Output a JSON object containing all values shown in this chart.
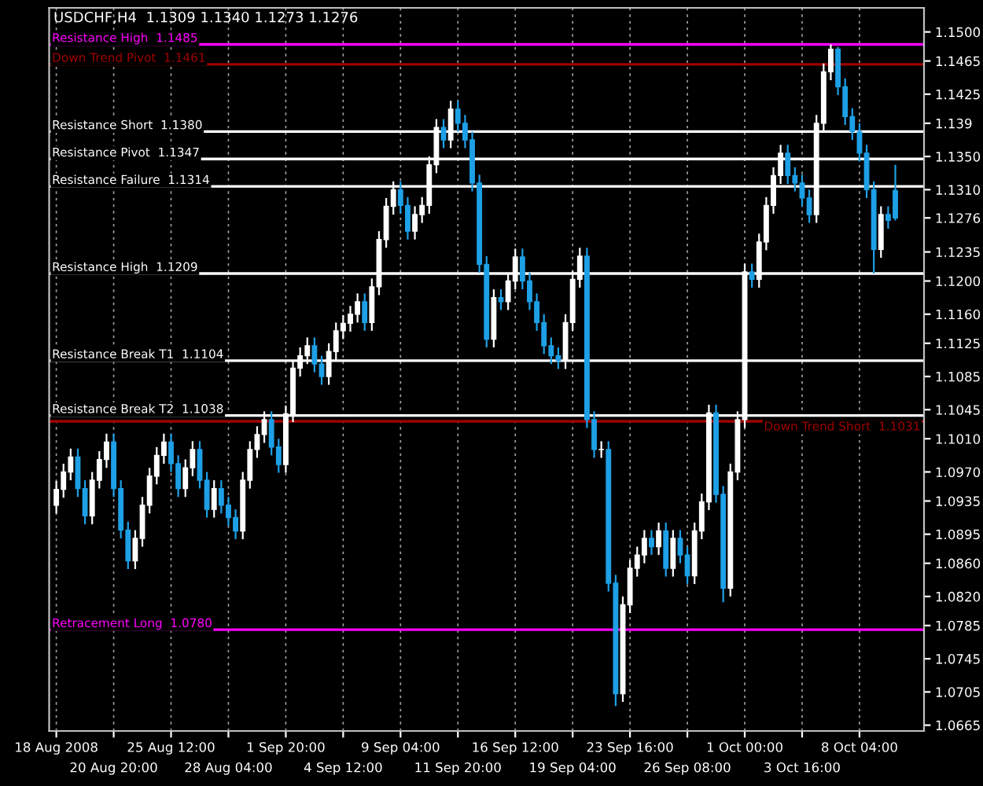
{
  "chart_data": {
    "type": "candlestick",
    "title": "USDCHF,H4  1.1309 1.1340 1.1273 1.1276",
    "categories": [
      "18 Aug 2008",
      null,
      null,
      null,
      null,
      null,
      null,
      null,
      "20 Aug 20:00",
      null,
      null,
      null,
      null,
      null,
      null,
      null,
      "25 Aug 12:00",
      null,
      null,
      null,
      null,
      null,
      null,
      null,
      "28 Aug 04:00",
      null,
      null,
      null,
      null,
      null,
      null,
      null,
      "1 Sep 20:00",
      null,
      null,
      null,
      null,
      null,
      null,
      null,
      "4 Sep 12:00",
      null,
      null,
      null,
      null,
      null,
      null,
      null,
      "9 Sep 04:00",
      null,
      null,
      null,
      null,
      null,
      null,
      null,
      "11 Sep 20:00",
      null,
      null,
      null,
      null,
      null,
      null,
      null,
      "16 Sep 12:00",
      null,
      null,
      null,
      null,
      null,
      null,
      null,
      "19 Sep 04:00",
      null,
      null,
      null,
      null,
      null,
      null,
      null,
      "23 Sep 16:00",
      null,
      null,
      null,
      null,
      null,
      null,
      null,
      "26 Sep 08:00",
      null,
      null,
      null,
      null,
      null,
      null,
      null,
      "1 Oct 00:00",
      null,
      null,
      null,
      null,
      null,
      null,
      null,
      "3 Oct 16:00",
      null,
      null,
      null,
      null,
      null,
      null,
      null,
      "8 Oct 04:00",
      null,
      null,
      null,
      null,
      null
    ],
    "ohlc": [
      [
        1.093,
        1.0959,
        1.092,
        1.0949
      ],
      [
        1.0949,
        1.098,
        1.0939,
        1.097
      ],
      [
        1.097,
        1.0998,
        1.096,
        1.0988
      ],
      [
        1.0988,
        1.0998,
        1.094,
        1.095
      ],
      [
        1.095,
        1.096,
        1.0907,
        1.0917
      ],
      [
        1.0917,
        1.097,
        1.0907,
        1.096
      ],
      [
        1.096,
        1.0995,
        1.095,
        1.0985
      ],
      [
        1.0985,
        1.1016,
        1.0975,
        1.1006
      ],
      [
        1.1006,
        1.1016,
        1.094,
        1.095
      ],
      [
        1.095,
        1.096,
        1.089,
        1.09
      ],
      [
        1.09,
        1.091,
        1.0853,
        1.0863
      ],
      [
        1.0863,
        1.09,
        1.0853,
        1.089
      ],
      [
        1.089,
        1.094,
        1.088,
        1.093
      ],
      [
        1.093,
        1.0975,
        1.092,
        1.0965
      ],
      [
        1.0965,
        1.1,
        1.0955,
        1.099
      ],
      [
        1.099,
        1.1016,
        1.098,
        1.1006
      ],
      [
        1.1006,
        1.1016,
        1.097,
        1.098
      ],
      [
        1.098,
        1.099,
        1.094,
        1.095
      ],
      [
        1.095,
        1.0985,
        1.094,
        1.0975
      ],
      [
        1.0975,
        1.1007,
        1.0965,
        1.0997
      ],
      [
        1.0997,
        1.1007,
        1.095,
        1.096
      ],
      [
        1.096,
        1.097,
        1.0915,
        1.0925
      ],
      [
        1.0925,
        1.096,
        1.0915,
        1.095
      ],
      [
        1.095,
        1.096,
        1.092,
        1.093
      ],
      [
        1.093,
        1.094,
        1.0905,
        1.0915
      ],
      [
        1.0915,
        1.0925,
        1.0889,
        1.0899
      ],
      [
        1.0899,
        1.097,
        1.0889,
        1.096
      ],
      [
        1.096,
        1.1007,
        1.095,
        1.0997
      ],
      [
        1.0997,
        1.1025,
        1.0987,
        1.1015
      ],
      [
        1.1015,
        1.1043,
        1.1005,
        1.1033
      ],
      [
        1.1033,
        1.1043,
        1.099,
        1.1
      ],
      [
        1.1,
        1.101,
        1.0969,
        1.0979
      ],
      [
        1.0979,
        1.105,
        1.0969,
        1.104
      ],
      [
        1.104,
        1.1105,
        1.103,
        1.1095
      ],
      [
        1.1095,
        1.112,
        1.1085,
        1.111
      ],
      [
        1.111,
        1.1132,
        1.11,
        1.1122
      ],
      [
        1.1122,
        1.1132,
        1.109,
        1.11
      ],
      [
        1.11,
        1.111,
        1.1075,
        1.1085
      ],
      [
        1.1085,
        1.1125,
        1.1075,
        1.1115
      ],
      [
        1.1115,
        1.115,
        1.1105,
        1.114
      ],
      [
        1.114,
        1.1159,
        1.113,
        1.1149
      ],
      [
        1.1149,
        1.117,
        1.1139,
        1.116
      ],
      [
        1.116,
        1.1185,
        1.115,
        1.1175
      ],
      [
        1.1175,
        1.1185,
        1.114,
        1.115
      ],
      [
        1.115,
        1.1203,
        1.114,
        1.1193
      ],
      [
        1.1193,
        1.126,
        1.1183,
        1.125
      ],
      [
        1.125,
        1.13,
        1.124,
        1.129
      ],
      [
        1.129,
        1.132,
        1.128,
        1.131
      ],
      [
        1.131,
        1.132,
        1.1281,
        1.1291
      ],
      [
        1.1291,
        1.1301,
        1.125,
        1.126
      ],
      [
        1.126,
        1.129,
        1.125,
        1.128
      ],
      [
        1.128,
        1.1301,
        1.127,
        1.1291
      ],
      [
        1.1291,
        1.135,
        1.1281,
        1.134
      ],
      [
        1.134,
        1.1395,
        1.133,
        1.1385
      ],
      [
        1.1385,
        1.1395,
        1.136,
        1.137
      ],
      [
        1.137,
        1.1417,
        1.136,
        1.1407
      ],
      [
        1.1407,
        1.1417,
        1.138,
        1.139
      ],
      [
        1.139,
        1.14,
        1.136,
        1.137
      ],
      [
        1.137,
        1.138,
        1.1308,
        1.1318
      ],
      [
        1.1318,
        1.1328,
        1.121,
        1.122
      ],
      [
        1.122,
        1.123,
        1.112,
        1.113
      ],
      [
        1.113,
        1.119,
        1.112,
        1.118
      ],
      [
        1.118,
        1.119,
        1.1165,
        1.1175
      ],
      [
        1.1175,
        1.121,
        1.1165,
        1.12
      ],
      [
        1.12,
        1.1239,
        1.119,
        1.1229
      ],
      [
        1.1229,
        1.1239,
        1.119,
        1.12
      ],
      [
        1.12,
        1.121,
        1.1165,
        1.1175
      ],
      [
        1.1175,
        1.1185,
        1.114,
        1.115
      ],
      [
        1.115,
        1.116,
        1.1112,
        1.1122
      ],
      [
        1.1122,
        1.1132,
        1.11,
        1.111
      ],
      [
        1.111,
        1.112,
        1.1094,
        1.1104
      ],
      [
        1.1104,
        1.116,
        1.1094,
        1.115
      ],
      [
        1.115,
        1.1212,
        1.114,
        1.1202
      ],
      [
        1.1202,
        1.124,
        1.1192,
        1.123
      ],
      [
        1.123,
        1.124,
        1.1023,
        1.1033
      ],
      [
        1.1033,
        1.1043,
        1.0987,
        1.0997
      ],
      [
        1.0997,
        1.1007,
        1.0987,
        1.0997
      ],
      [
        1.0997,
        1.1007,
        1.0826,
        1.0836
      ],
      [
        1.0836,
        1.0846,
        1.0688,
        1.0703
      ],
      [
        1.0703,
        1.082,
        1.0693,
        1.081
      ],
      [
        1.081,
        1.0864,
        1.08,
        1.0854
      ],
      [
        1.0854,
        1.088,
        1.0844,
        1.087
      ],
      [
        1.087,
        1.09,
        1.086,
        1.089
      ],
      [
        1.089,
        1.09,
        1.087,
        1.088
      ],
      [
        1.088,
        1.0909,
        1.087,
        1.0899
      ],
      [
        1.0899,
        1.0909,
        1.0844,
        1.0854
      ],
      [
        1.0854,
        1.09,
        1.0844,
        1.089
      ],
      [
        1.089,
        1.09,
        1.086,
        1.087
      ],
      [
        1.087,
        1.088,
        1.0835,
        1.0845
      ],
      [
        1.0845,
        1.0909,
        1.0835,
        1.0899
      ],
      [
        1.0899,
        1.0944,
        1.0889,
        1.0934
      ],
      [
        1.0934,
        1.1051,
        1.0924,
        1.1041
      ],
      [
        1.1041,
        1.1051,
        1.0933,
        1.0943
      ],
      [
        1.0943,
        1.0953,
        1.0813,
        1.083
      ],
      [
        1.083,
        1.098,
        1.082,
        1.097
      ],
      [
        1.097,
        1.1043,
        1.096,
        1.1033
      ],
      [
        1.1033,
        1.1221,
        1.1023,
        1.1211
      ],
      [
        1.1211,
        1.1221,
        1.1192,
        1.1202
      ],
      [
        1.1202,
        1.1257,
        1.1192,
        1.1247
      ],
      [
        1.1247,
        1.1301,
        1.1237,
        1.1291
      ],
      [
        1.1291,
        1.1337,
        1.1281,
        1.1327
      ],
      [
        1.1327,
        1.1364,
        1.1317,
        1.1354
      ],
      [
        1.1354,
        1.1364,
        1.1317,
        1.1327
      ],
      [
        1.1327,
        1.1337,
        1.1308,
        1.1318
      ],
      [
        1.1318,
        1.1328,
        1.129,
        1.13
      ],
      [
        1.13,
        1.131,
        1.127,
        1.128
      ],
      [
        1.128,
        1.14,
        1.127,
        1.139
      ],
      [
        1.139,
        1.1462,
        1.138,
        1.1452
      ],
      [
        1.1452,
        1.1485,
        1.1442,
        1.1479
      ],
      [
        1.1479,
        1.1482,
        1.1424,
        1.1434
      ],
      [
        1.1434,
        1.1444,
        1.1388,
        1.1398
      ],
      [
        1.1398,
        1.1408,
        1.137,
        1.138
      ],
      [
        1.138,
        1.139,
        1.1344,
        1.1354
      ],
      [
        1.1354,
        1.1364,
        1.13,
        1.131
      ],
      [
        1.131,
        1.132,
        1.1209,
        1.1238
      ],
      [
        1.1238,
        1.129,
        1.1228,
        1.128
      ],
      [
        1.128,
        1.129,
        1.1263,
        1.1273
      ],
      [
        1.1309,
        1.134,
        1.1273,
        1.1276
      ]
    ],
    "colors": [
      "#ffffff",
      "#ffffff",
      "#ffffff",
      "#1ea0e6",
      "#1ea0e6",
      "#ffffff",
      "#ffffff",
      "#ffffff",
      "#1ea0e6",
      "#1ea0e6",
      "#1ea0e6",
      "#ffffff",
      "#ffffff",
      "#ffffff",
      "#ffffff",
      "#ffffff",
      "#1ea0e6",
      "#1ea0e6",
      "#ffffff",
      "#ffffff",
      "#1ea0e6",
      "#1ea0e6",
      "#ffffff",
      "#1ea0e6",
      "#1ea0e6",
      "#1ea0e6",
      "#ffffff",
      "#ffffff",
      "#ffffff",
      "#ffffff",
      "#1ea0e6",
      "#1ea0e6",
      "#ffffff",
      "#ffffff",
      "#ffffff",
      "#ffffff",
      "#1ea0e6",
      "#1ea0e6",
      "#ffffff",
      "#ffffff",
      "#ffffff",
      "#ffffff",
      "#ffffff",
      "#1ea0e6",
      "#ffffff",
      "#ffffff",
      "#ffffff",
      "#ffffff",
      "#1ea0e6",
      "#1ea0e6",
      "#ffffff",
      "#ffffff",
      "#ffffff",
      "#ffffff",
      "#1ea0e6",
      "#ffffff",
      "#1ea0e6",
      "#1ea0e6",
      "#1ea0e6",
      "#1ea0e6",
      "#1ea0e6",
      "#ffffff",
      "#1ea0e6",
      "#ffffff",
      "#ffffff",
      "#1ea0e6",
      "#1ea0e6",
      "#1ea0e6",
      "#1ea0e6",
      "#1ea0e6",
      "#1ea0e6",
      "#ffffff",
      "#ffffff",
      "#ffffff",
      "#1ea0e6",
      "#1ea0e6",
      "#ffffff",
      "#1ea0e6",
      "#1ea0e6",
      "#ffffff",
      "#ffffff",
      "#ffffff",
      "#ffffff",
      "#1ea0e6",
      "#ffffff",
      "#1ea0e6",
      "#ffffff",
      "#1ea0e6",
      "#1ea0e6",
      "#ffffff",
      "#ffffff",
      "#ffffff",
      "#1ea0e6",
      "#1ea0e6",
      "#ffffff",
      "#ffffff",
      "#ffffff",
      "#1ea0e6",
      "#ffffff",
      "#ffffff",
      "#ffffff",
      "#ffffff",
      "#1ea0e6",
      "#1ea0e6",
      "#1ea0e6",
      "#1ea0e6",
      "#ffffff",
      "#ffffff",
      "#ffffff",
      "#1ea0e6",
      "#1ea0e6",
      "#1ea0e6",
      "#1ea0e6",
      "#1ea0e6",
      "#1ea0e6",
      "#ffffff",
      "#1ea0e6",
      "#1ea0e6"
    ],
    "ylim": [
      1.0658,
      1.1529
    ],
    "yticks": [
      {
        "value": 1.15,
        "label": "1.1500"
      },
      1.1465,
      1.1425,
      1.139,
      {
        "value": 1.135,
        "label": "1.1350"
      },
      {
        "value": 1.131,
        "label": "1.1310"
      },
      1.1276,
      1.1235,
      {
        "value": 1.12,
        "label": "1.1200"
      },
      {
        "value": 1.116,
        "label": "1.1160"
      },
      1.1125,
      1.1085,
      1.1045,
      {
        "value": 1.101,
        "label": "1.1010"
      },
      {
        "value": 1.097,
        "label": "1.0970"
      },
      1.0935,
      1.0895,
      {
        "value": 1.086,
        "label": "1.0860"
      },
      {
        "value": 1.082,
        "label": "1.0820"
      },
      1.0785,
      1.0745,
      1.0705,
      1.0665
    ],
    "ref_lines": [
      {
        "axis": "y",
        "value": 1.1485,
        "label": "Resistance High  1.1485",
        "color": "#ff00ff"
      },
      {
        "axis": "y",
        "value": 1.1461,
        "label": "Down Trend Pivot  1.1461",
        "color": "#a00000"
      },
      {
        "axis": "y",
        "value": 1.138,
        "label": "Resistance Short  1.1380",
        "color": "#ffffff"
      },
      {
        "axis": "y",
        "value": 1.1347,
        "label": "Resistance Pivot  1.1347",
        "color": "#ffffff"
      },
      {
        "axis": "y",
        "value": 1.1314,
        "label": "Resistance Failure  1.1314",
        "color": "#ffffff"
      },
      {
        "axis": "y",
        "value": 1.1209,
        "label": "Resistance High  1.1209",
        "color": "#ffffff"
      },
      {
        "axis": "y",
        "value": 1.1104,
        "label": "Resistance Break T1  1.1104",
        "color": "#ffffff"
      },
      {
        "axis": "y",
        "value": 1.1038,
        "label": "Resistance Break T2  1.1038",
        "color": "#ffffff"
      },
      {
        "axis": "y",
        "value": 1.1031,
        "label": "Down Trend Short  1.1031",
        "color": "#a00000"
      },
      {
        "axis": "y",
        "value": 1.078,
        "label": "Retracement Long  1.0780",
        "color": "#ff00ff"
      }
    ],
    "grid": "x"
  }
}
